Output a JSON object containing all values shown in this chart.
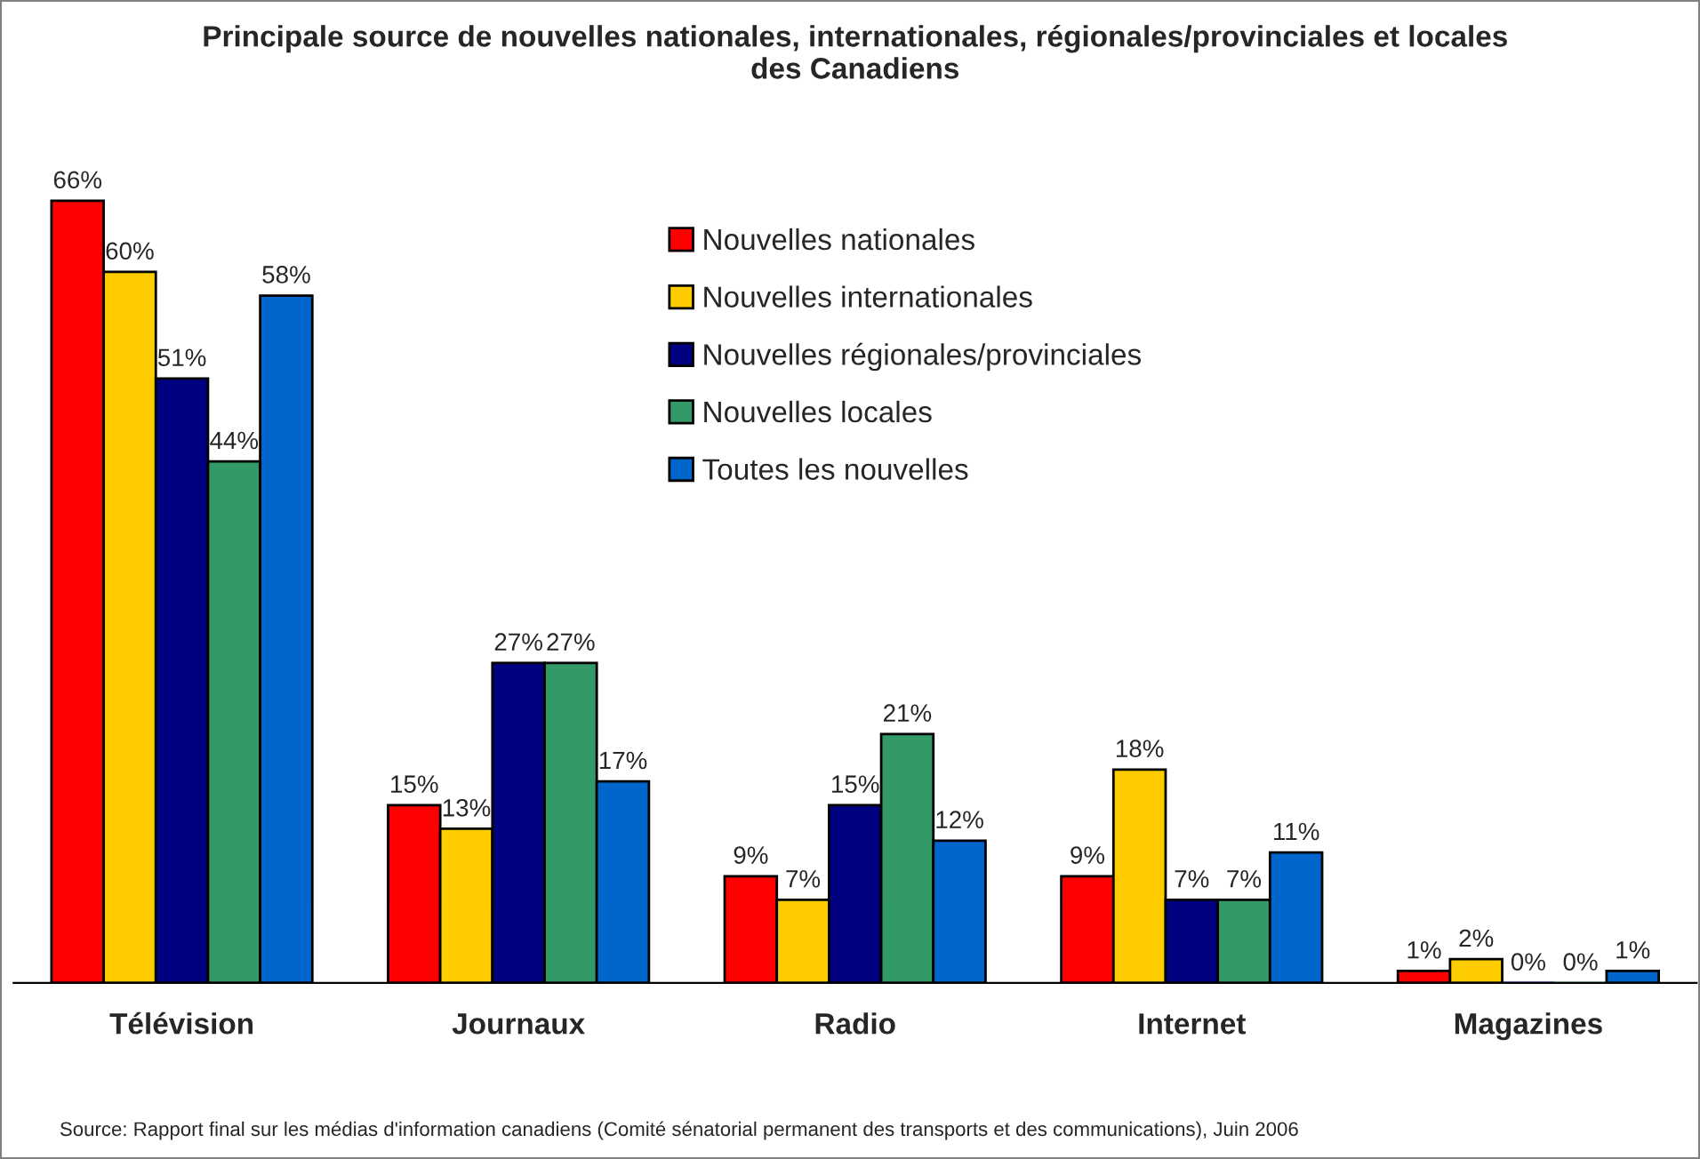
{
  "chart_data": {
    "type": "bar",
    "title": "Principale source de nouvelles nationales, internationales, régionales/provinciales et locales\ndes Canadiens",
    "categories": [
      "Télévision",
      "Journaux",
      "Radio",
      "Internet",
      "Magazines"
    ],
    "series": [
      {
        "name": "Nouvelles nationales",
        "color": "#ff0000",
        "values": [
          66,
          15,
          9,
          9,
          1
        ],
        "value_labels": [
          "66%",
          "15%",
          "9%",
          "9%",
          "1%"
        ]
      },
      {
        "name": "Nouvelles internationales",
        "color": "#ffcc00",
        "values": [
          60,
          13,
          7,
          18,
          2
        ],
        "value_labels": [
          "60%",
          "13%",
          "7%",
          "18%",
          "2%"
        ]
      },
      {
        "name": "Nouvelles régionales/provinciales",
        "color": "#000080",
        "values": [
          51,
          27,
          15,
          7,
          0
        ],
        "value_labels": [
          "51%",
          "27%",
          "15%",
          "7%",
          "0%"
        ]
      },
      {
        "name": "Nouvelles locales",
        "color": "#339966",
        "values": [
          44,
          27,
          21,
          7,
          0
        ],
        "value_labels": [
          "44%",
          "27%",
          "21%",
          "7%",
          "0%"
        ]
      },
      {
        "name": "Toutes les nouvelles",
        "color": "#0066cc",
        "values": [
          58,
          17,
          12,
          11,
          1
        ],
        "value_labels": [
          "58%",
          "17%",
          "12%",
          "11%",
          "1%"
        ]
      }
    ],
    "legend": "top",
    "grid": false,
    "annotations": [
      "Source: Rapport final sur les médias d'information canadiens (Comité sénatorial permanent des transports et des communications), Juin 2006"
    ]
  }
}
